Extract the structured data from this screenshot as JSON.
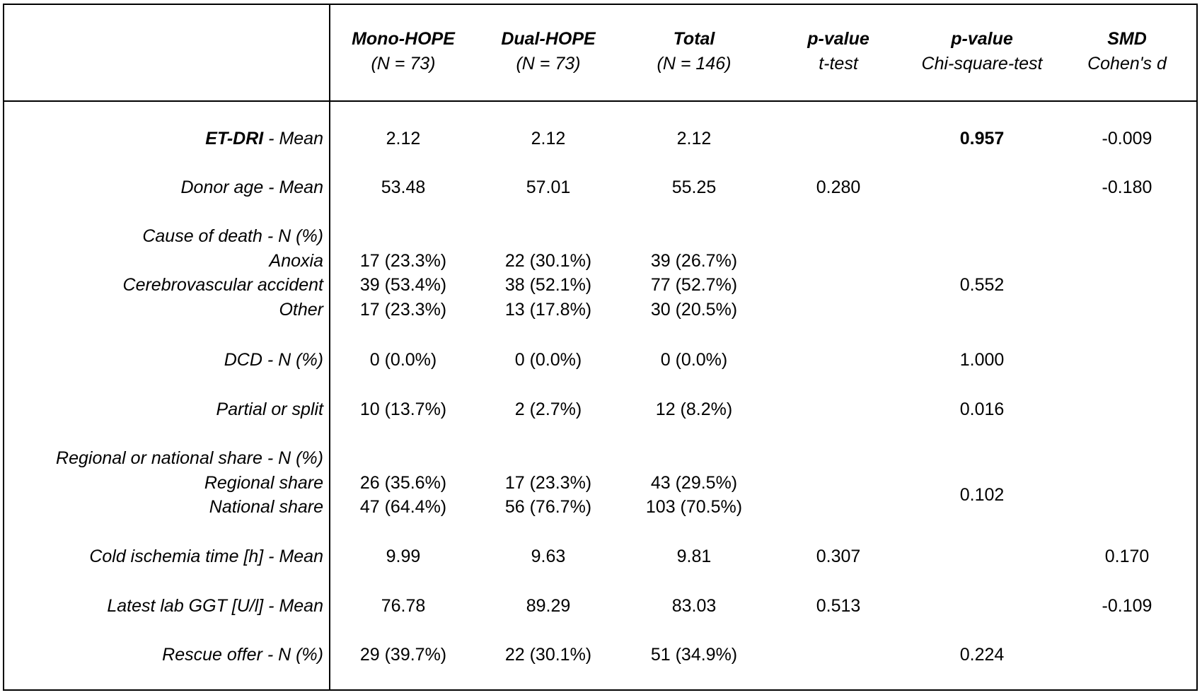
{
  "header": {
    "columns": [
      {
        "title": "Mono-HOPE",
        "sub": "(N = 73)"
      },
      {
        "title": "Dual-HOPE",
        "sub": "(N = 73)"
      },
      {
        "title": "Total",
        "sub": "(N = 146)"
      },
      {
        "title": "p-value",
        "sub": "t-test"
      },
      {
        "title": "p-value",
        "sub": "Chi-square-test"
      },
      {
        "title": "SMD",
        "sub": "Cohen's d"
      }
    ]
  },
  "rows": {
    "etdri": {
      "label_bold": "ET-DRI",
      "label_rest": " - Mean",
      "mono": "2.12",
      "dual": "2.12",
      "total": "2.12",
      "chi": "0.957",
      "smd": "-0.009"
    },
    "donor_age": {
      "label": "Donor age - Mean",
      "mono": "53.48",
      "dual": "57.01",
      "total": "55.25",
      "ttest": "0.280",
      "smd": "-0.180"
    },
    "cause_of_death": {
      "label": "Cause of death - N (%)",
      "chi": "0.552",
      "sub": [
        {
          "label": "Anoxia",
          "mono": "17 (23.3%)",
          "dual": "22 (30.1%)",
          "total": "39 (26.7%)"
        },
        {
          "label": "Cerebrovascular accident",
          "mono": "39 (53.4%)",
          "dual": "38 (52.1%)",
          "total": "77 (52.7%)"
        },
        {
          "label": "Other",
          "mono": "17 (23.3%)",
          "dual": "13 (17.8%)",
          "total": "30 (20.5%)"
        }
      ]
    },
    "dcd": {
      "label": "DCD - N (%)",
      "mono": "0 (0.0%)",
      "dual": "0 (0.0%)",
      "total": "0 (0.0%)",
      "chi": "1.000"
    },
    "partial": {
      "label": "Partial or split",
      "mono": "10 (13.7%)",
      "dual": "2 (2.7%)",
      "total": "12 (8.2%)",
      "chi": "0.016"
    },
    "share": {
      "label": "Regional or national share - N (%)",
      "chi": "0.102",
      "sub": [
        {
          "label": "Regional share",
          "mono": "26 (35.6%)",
          "dual": "17 (23.3%)",
          "total": "43 (29.5%)"
        },
        {
          "label": "National share",
          "mono": "47 (64.4%)",
          "dual": "56 (76.7%)",
          "total": "103 (70.5%)"
        }
      ]
    },
    "cold_isch": {
      "label": "Cold ischemia time [h] - Mean",
      "mono": "9.99",
      "dual": "9.63",
      "total": "9.81",
      "ttest": "0.307",
      "smd": "0.170"
    },
    "ggt": {
      "label": "Latest lab GGT [U/l] - Mean",
      "mono": "76.78",
      "dual": "89.29",
      "total": "83.03",
      "ttest": "0.513",
      "smd": "-0.109"
    },
    "rescue": {
      "label": "Rescue offer - N (%)",
      "mono": "29 (39.7%)",
      "dual": "22 (30.1%)",
      "total": "51 (34.9%)",
      "chi": "0.224"
    }
  }
}
